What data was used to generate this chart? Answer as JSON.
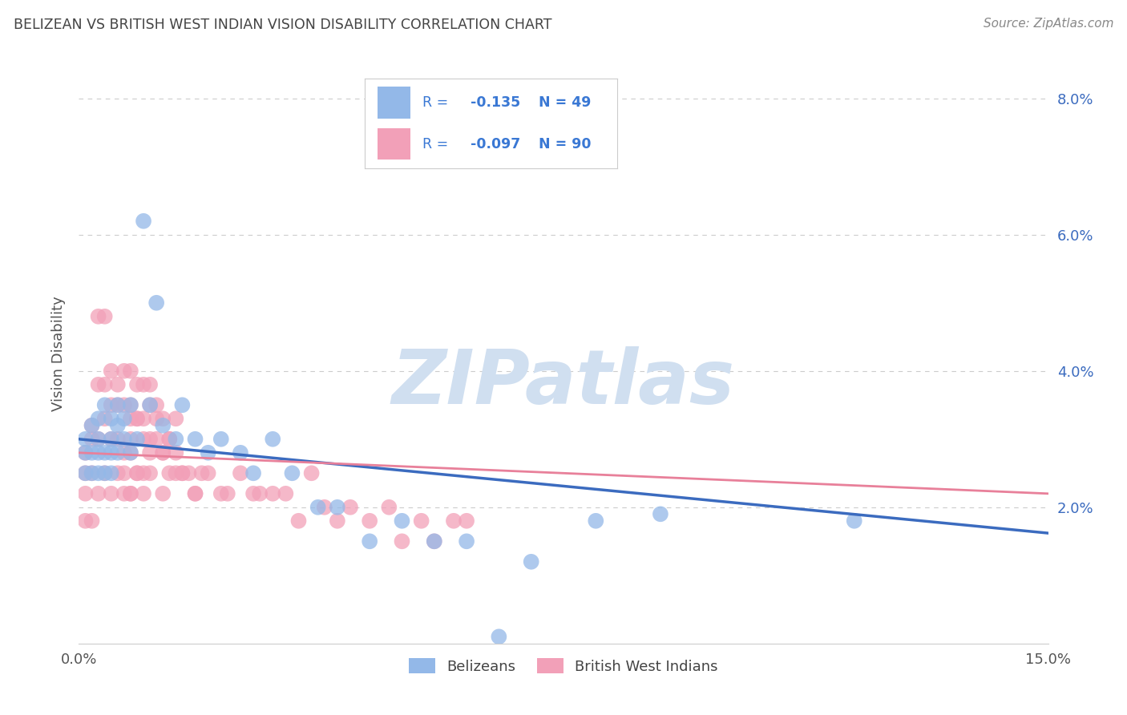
{
  "title": "BELIZEAN VS BRITISH WEST INDIAN VISION DISABILITY CORRELATION CHART",
  "source": "Source: ZipAtlas.com",
  "ylabel": "Vision Disability",
  "watermark": "ZIPatlas",
  "xlim": [
    0.0,
    0.15
  ],
  "ylim": [
    0.0,
    0.085
  ],
  "yticks": [
    0.02,
    0.04,
    0.06,
    0.08
  ],
  "ytick_labels": [
    "2.0%",
    "4.0%",
    "6.0%",
    "8.0%"
  ],
  "xticks": [
    0.0,
    0.03,
    0.06,
    0.09,
    0.12,
    0.15
  ],
  "xtick_labels": [
    "0.0%",
    "",
    "",
    "",
    "",
    "15.0%"
  ],
  "blue_R": "-0.135",
  "blue_N": "49",
  "pink_R": "-0.097",
  "pink_N": "90",
  "blue_color": "#93b8e8",
  "pink_color": "#f2a0b8",
  "blue_line_color": "#3b6bbf",
  "pink_line_color": "#e8809a",
  "grid_color": "#cccccc",
  "title_color": "#444444",
  "axis_label_color": "#555555",
  "source_color": "#888888",
  "legend_text_color": "#3a78d4",
  "watermark_color": "#d0dff0",
  "blue_x": [
    0.001,
    0.001,
    0.001,
    0.002,
    0.002,
    0.002,
    0.003,
    0.003,
    0.003,
    0.003,
    0.004,
    0.004,
    0.004,
    0.005,
    0.005,
    0.005,
    0.005,
    0.006,
    0.006,
    0.006,
    0.007,
    0.007,
    0.008,
    0.008,
    0.009,
    0.01,
    0.011,
    0.012,
    0.013,
    0.015,
    0.016,
    0.018,
    0.02,
    0.022,
    0.025,
    0.027,
    0.03,
    0.033,
    0.037,
    0.04,
    0.045,
    0.05,
    0.055,
    0.06,
    0.07,
    0.08,
    0.09,
    0.12,
    0.065
  ],
  "blue_y": [
    0.03,
    0.028,
    0.025,
    0.032,
    0.028,
    0.025,
    0.033,
    0.03,
    0.028,
    0.025,
    0.035,
    0.028,
    0.025,
    0.033,
    0.03,
    0.028,
    0.025,
    0.035,
    0.032,
    0.028,
    0.033,
    0.03,
    0.035,
    0.028,
    0.03,
    0.062,
    0.035,
    0.05,
    0.032,
    0.03,
    0.035,
    0.03,
    0.028,
    0.03,
    0.028,
    0.025,
    0.03,
    0.025,
    0.02,
    0.02,
    0.015,
    0.018,
    0.015,
    0.015,
    0.012,
    0.018,
    0.019,
    0.018,
    0.001
  ],
  "pink_x": [
    0.001,
    0.001,
    0.001,
    0.001,
    0.002,
    0.002,
    0.002,
    0.002,
    0.003,
    0.003,
    0.003,
    0.003,
    0.004,
    0.004,
    0.004,
    0.004,
    0.005,
    0.005,
    0.005,
    0.005,
    0.006,
    0.006,
    0.006,
    0.006,
    0.007,
    0.007,
    0.007,
    0.008,
    0.008,
    0.008,
    0.008,
    0.009,
    0.009,
    0.009,
    0.01,
    0.01,
    0.01,
    0.011,
    0.011,
    0.012,
    0.012,
    0.013,
    0.013,
    0.014,
    0.015,
    0.015,
    0.016,
    0.017,
    0.018,
    0.019,
    0.02,
    0.022,
    0.023,
    0.025,
    0.027,
    0.028,
    0.03,
    0.032,
    0.034,
    0.036,
    0.038,
    0.04,
    0.042,
    0.045,
    0.048,
    0.05,
    0.053,
    0.055,
    0.058,
    0.06,
    0.007,
    0.007,
    0.008,
    0.008,
    0.008,
    0.009,
    0.009,
    0.01,
    0.01,
    0.011,
    0.011,
    0.011,
    0.012,
    0.013,
    0.013,
    0.014,
    0.014,
    0.015,
    0.016,
    0.018
  ],
  "pink_y": [
    0.028,
    0.025,
    0.022,
    0.018,
    0.032,
    0.03,
    0.025,
    0.018,
    0.048,
    0.038,
    0.03,
    0.022,
    0.048,
    0.038,
    0.033,
    0.025,
    0.04,
    0.035,
    0.03,
    0.022,
    0.038,
    0.035,
    0.03,
    0.025,
    0.04,
    0.035,
    0.025,
    0.04,
    0.035,
    0.03,
    0.022,
    0.038,
    0.033,
    0.025,
    0.038,
    0.033,
    0.025,
    0.035,
    0.028,
    0.035,
    0.03,
    0.033,
    0.028,
    0.03,
    0.033,
    0.025,
    0.025,
    0.025,
    0.022,
    0.025,
    0.025,
    0.022,
    0.022,
    0.025,
    0.022,
    0.022,
    0.022,
    0.022,
    0.018,
    0.025,
    0.02,
    0.018,
    0.02,
    0.018,
    0.02,
    0.015,
    0.018,
    0.015,
    0.018,
    0.018,
    0.028,
    0.022,
    0.033,
    0.028,
    0.022,
    0.033,
    0.025,
    0.03,
    0.022,
    0.038,
    0.03,
    0.025,
    0.033,
    0.028,
    0.022,
    0.03,
    0.025,
    0.028,
    0.025,
    0.022
  ],
  "blue_intercept": 0.03,
  "blue_slope": -0.092,
  "pink_intercept": 0.028,
  "pink_slope": -0.04
}
